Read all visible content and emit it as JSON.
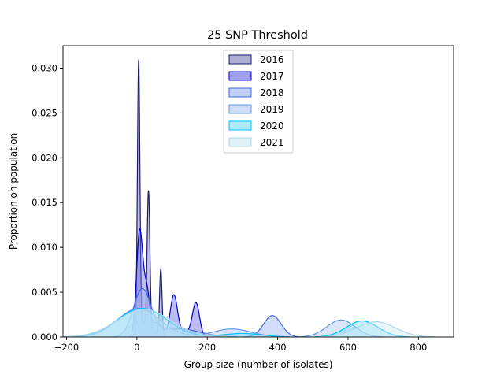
{
  "chart_data": {
    "type": "area",
    "title": "25 SNP Threshold",
    "xlabel": "Group size (number of isolates)",
    "ylabel": "Proportion on population",
    "xlim": [
      -210,
      900
    ],
    "ylim": [
      0,
      0.0325
    ],
    "xticks": [
      -200,
      0,
      200,
      400,
      600,
      800
    ],
    "xtick_labels": [
      "−200",
      "0",
      "200",
      "400",
      "600",
      "800"
    ],
    "yticks": [
      0,
      0.005,
      0.01,
      0.015,
      0.02,
      0.025,
      0.03
    ],
    "ytick_labels": [
      "0.000",
      "0.005",
      "0.010",
      "0.015",
      "0.020",
      "0.025",
      "0.030"
    ],
    "grid": false,
    "legend_position": "top-center",
    "series": [
      {
        "name": "2016",
        "color": "#191970",
        "fill": "#9a9ac8",
        "fill_opacity": 0.6,
        "components": [
          {
            "mu": 5,
            "sigma": 3.5,
            "amp": 0.0298
          },
          {
            "mu": 33,
            "sigma": 4,
            "amp": 0.0158
          },
          {
            "mu": 68,
            "sigma": 3.5,
            "amp": 0.0075
          },
          {
            "mu": 14,
            "sigma": 11,
            "amp": 0.0016
          },
          {
            "mu": 48,
            "sigma": 10,
            "amp": 0.0006
          }
        ]
      },
      {
        "name": "2017",
        "color": "#0000cd",
        "fill": "#6b6be8",
        "fill_opacity": 0.45,
        "components": [
          {
            "mu": 8,
            "sigma": 9,
            "amp": 0.0118
          },
          {
            "mu": 28,
            "sigma": 8,
            "amp": 0.0045
          },
          {
            "mu": 105,
            "sigma": 10,
            "amp": 0.0045
          },
          {
            "mu": 168,
            "sigma": 10,
            "amp": 0.0037
          },
          {
            "mu": 55,
            "sigma": 18,
            "amp": 0.0016
          },
          {
            "mu": 135,
            "sigma": 20,
            "amp": 0.0006
          }
        ]
      },
      {
        "name": "2018",
        "color": "#4169e1",
        "fill": "#a6b9f2",
        "fill_opacity": 0.5,
        "components": [
          {
            "mu": 15,
            "sigma": 25,
            "amp": 0.0052
          },
          {
            "mu": 385,
            "sigma": 25,
            "amp": 0.0024
          },
          {
            "mu": 120,
            "sigma": 60,
            "amp": 0.0009
          }
        ]
      },
      {
        "name": "2019",
        "color": "#6495ed",
        "fill": "#b8cdf6",
        "fill_opacity": 0.5,
        "components": [
          {
            "mu": 5,
            "sigma": 60,
            "amp": 0.0032
          },
          {
            "mu": 270,
            "sigma": 55,
            "amp": 0.0009
          },
          {
            "mu": 580,
            "sigma": 40,
            "amp": 0.0019
          }
        ]
      },
      {
        "name": "2020",
        "color": "#00bfff",
        "fill": "#7fe0ff",
        "fill_opacity": 0.45,
        "components": [
          {
            "mu": 15,
            "sigma": 70,
            "amp": 0.0032
          },
          {
            "mu": 640,
            "sigma": 45,
            "amp": 0.0018
          },
          {
            "mu": 300,
            "sigma": 55,
            "amp": 0.0004
          }
        ]
      },
      {
        "name": "2021",
        "color": "#add8e6",
        "fill": "#cfeaf2",
        "fill_opacity": 0.45,
        "components": [
          {
            "mu": 20,
            "sigma": 75,
            "amp": 0.0031
          },
          {
            "mu": 680,
            "sigma": 55,
            "amp": 0.0017
          }
        ]
      }
    ]
  }
}
